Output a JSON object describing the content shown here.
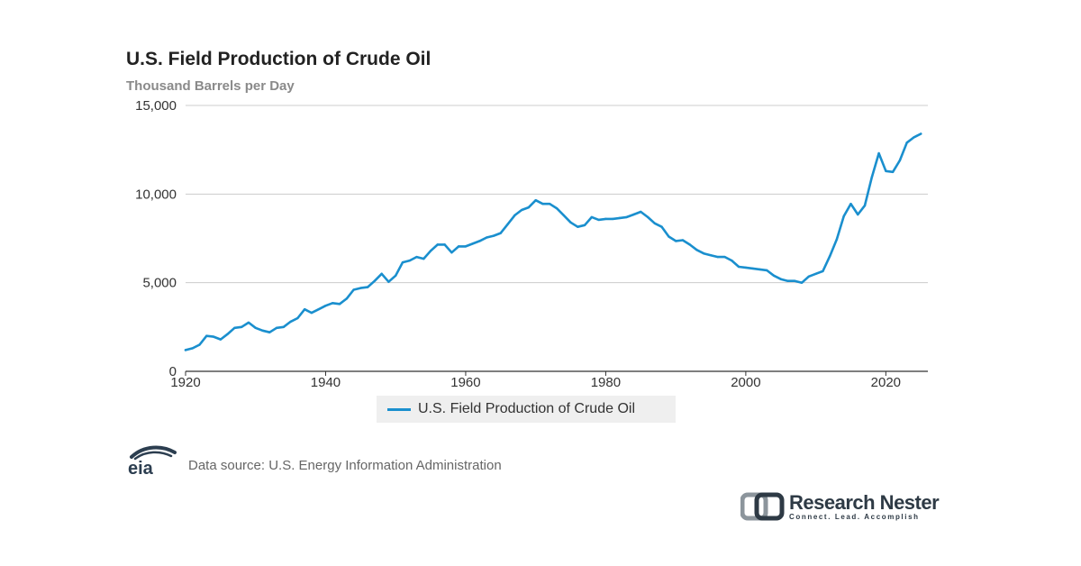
{
  "chart_data": {
    "type": "line",
    "title": "U.S. Field Production of Crude Oil",
    "subtitle": "Thousand Barrels per Day",
    "xlim": [
      1920,
      2026
    ],
    "ylim": [
      0,
      15000
    ],
    "x_ticks": [
      1920,
      1940,
      1960,
      1980,
      2000,
      2020
    ],
    "x_tick_labels": [
      "1920",
      "1940",
      "1960",
      "1980",
      "2000",
      "2020"
    ],
    "y_ticks": [
      0,
      5000,
      10000,
      15000
    ],
    "y_tick_labels": [
      "0",
      "5,000",
      "10,000",
      "15,000"
    ],
    "grid": "horizontal",
    "legend_position": "bottom-center",
    "series": [
      {
        "name": "U.S. Field Production of Crude Oil",
        "color": "#1a8fce",
        "x": [
          1920,
          1921,
          1922,
          1923,
          1924,
          1925,
          1926,
          1927,
          1928,
          1929,
          1930,
          1931,
          1932,
          1933,
          1934,
          1935,
          1936,
          1937,
          1938,
          1939,
          1940,
          1941,
          1942,
          1943,
          1944,
          1945,
          1946,
          1947,
          1948,
          1949,
          1950,
          1951,
          1952,
          1953,
          1954,
          1955,
          1956,
          1957,
          1958,
          1959,
          1960,
          1961,
          1962,
          1963,
          1964,
          1965,
          1966,
          1967,
          1968,
          1969,
          1970,
          1971,
          1972,
          1973,
          1974,
          1975,
          1976,
          1977,
          1978,
          1979,
          1980,
          1981,
          1982,
          1983,
          1984,
          1985,
          1986,
          1987,
          1988,
          1989,
          1990,
          1991,
          1992,
          1993,
          1994,
          1995,
          1996,
          1997,
          1998,
          1999,
          2000,
          2001,
          2002,
          2003,
          2004,
          2005,
          2006,
          2007,
          2008,
          2009,
          2010,
          2011,
          2012,
          2013,
          2014,
          2015,
          2016,
          2017,
          2018,
          2019,
          2020,
          2021,
          2022,
          2023,
          2024,
          2025
        ],
        "values": [
          1200,
          1300,
          1500,
          2000,
          1950,
          1800,
          2100,
          2450,
          2500,
          2750,
          2450,
          2300,
          2200,
          2450,
          2500,
          2800,
          3000,
          3500,
          3300,
          3500,
          3700,
          3850,
          3800,
          4100,
          4600,
          4700,
          4750,
          5100,
          5500,
          5050,
          5400,
          6150,
          6250,
          6450,
          6350,
          6800,
          7150,
          7150,
          6700,
          7050,
          7050,
          7200,
          7350,
          7550,
          7650,
          7800,
          8300,
          8800,
          9100,
          9250,
          9650,
          9450,
          9450,
          9200,
          8800,
          8400,
          8150,
          8250,
          8700,
          8550,
          8600,
          8600,
          8650,
          8700,
          8850,
          9000,
          8700,
          8350,
          8150,
          7600,
          7350,
          7400,
          7150,
          6850,
          6650,
          6550,
          6450,
          6450,
          6250,
          5900,
          5850,
          5800,
          5750,
          5700,
          5400,
          5200,
          5100,
          5100,
          5000,
          5350,
          5500,
          5650,
          6500,
          7450,
          8750,
          9450,
          8850,
          9350,
          10950,
          12300,
          11300,
          11250,
          11900,
          12900,
          13200,
          13400
        ]
      }
    ]
  },
  "source_text": "Data source: U.S. Energy Information Administration",
  "eia_logo_text": "eia",
  "research_nester": {
    "name": "Research Nester",
    "tagline": "Connect. Lead. Accomplish"
  }
}
